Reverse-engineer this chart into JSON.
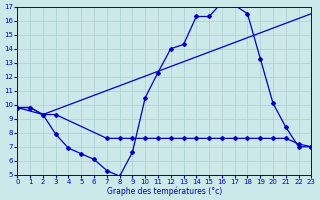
{
  "xlabel": "Graphe des températures (°c)",
  "bg_color": "#cce8e8",
  "grid_color": "#aacfcf",
  "line_color": "#0000cc",
  "ylim": [
    5,
    17
  ],
  "xlim": [
    0,
    23
  ],
  "yticks": [
    5,
    6,
    7,
    8,
    9,
    10,
    11,
    12,
    13,
    14,
    15,
    16,
    17
  ],
  "xticks": [
    0,
    1,
    2,
    3,
    4,
    5,
    6,
    7,
    8,
    9,
    10,
    11,
    12,
    13,
    14,
    15,
    16,
    17,
    18,
    19,
    20,
    21,
    22,
    23
  ],
  "line1_x": [
    0,
    1,
    2,
    3,
    4,
    5,
    6,
    7,
    8,
    9,
    10,
    11,
    12,
    13,
    14,
    15,
    16,
    17,
    18,
    19,
    20,
    21,
    22,
    23
  ],
  "line1_y": [
    9.8,
    9.8,
    9.3,
    7.9,
    6.9,
    6.5,
    6.1,
    5.3,
    4.9,
    6.6,
    10.5,
    12.3,
    14.0,
    14.3,
    16.3,
    16.3,
    17.3,
    17.1,
    16.5,
    13.3,
    10.1,
    8.4,
    7.0,
    7.0
  ],
  "line2_x": [
    0,
    2,
    23
  ],
  "line2_y": [
    9.8,
    9.3,
    16.5
  ],
  "line3_x": [
    0,
    1,
    2,
    3,
    7,
    8,
    9,
    10,
    11,
    12,
    13,
    14,
    15,
    16,
    17,
    18,
    19,
    20,
    21,
    22,
    23
  ],
  "line3_y": [
    9.8,
    9.8,
    9.3,
    9.3,
    7.6,
    7.6,
    7.6,
    7.6,
    7.6,
    7.6,
    7.6,
    7.6,
    7.6,
    7.6,
    7.6,
    7.6,
    7.6,
    7.6,
    7.6,
    7.2,
    7.0
  ]
}
